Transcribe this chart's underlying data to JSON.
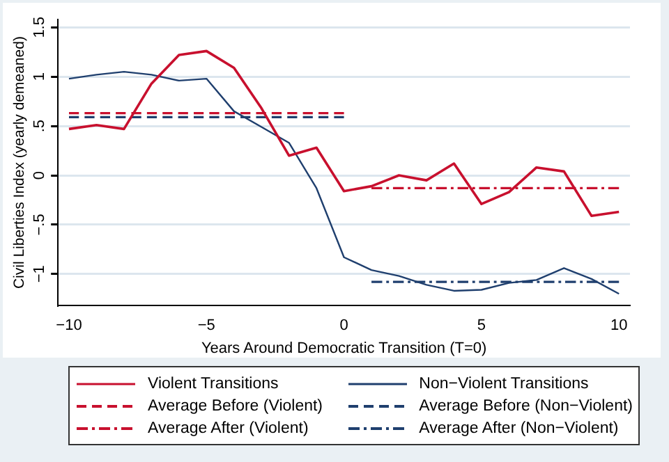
{
  "chart_data": {
    "type": "line",
    "xlabel": "Years Around Democratic Transition (T=0)",
    "ylabel": "Civil Liberties Index (yearly demeaned)",
    "x": [
      -10,
      -9,
      -8,
      -7,
      -6,
      -5,
      -4,
      -3,
      -2,
      -1,
      0,
      1,
      2,
      3,
      4,
      5,
      6,
      7,
      8,
      9,
      10
    ],
    "series": [
      {
        "name": "Violent Transitions",
        "color": "#c8102e",
        "line_style": "solid",
        "values": [
          0.47,
          0.51,
          0.47,
          0.93,
          1.22,
          1.26,
          1.09,
          0.68,
          0.2,
          0.28,
          -0.16,
          -0.11,
          0,
          -0.05,
          0.12,
          -0.29,
          -0.17,
          0.08,
          0.04,
          -0.41,
          -0.37
        ]
      },
      {
        "name": "Non−Violent Transitions",
        "color": "#1f3f6e",
        "line_style": "solid",
        "values": [
          0.98,
          1.02,
          1.05,
          1.02,
          0.96,
          0.98,
          0.65,
          0.49,
          0.33,
          -0.13,
          -0.83,
          -0.96,
          -1.02,
          -1.11,
          -1.17,
          -1.16,
          -1.09,
          -1.06,
          -0.94,
          -1.05,
          -1.2
        ]
      },
      {
        "name": "Average Before (Violent)",
        "color": "#c8102e",
        "line_style": "dashed",
        "x": [
          -10,
          0
        ],
        "values": [
          0.63,
          0.63
        ]
      },
      {
        "name": "Average Before (Non−Violent)",
        "color": "#1f3f6e",
        "line_style": "dashed",
        "x": [
          -10,
          0
        ],
        "values": [
          0.59,
          0.59
        ]
      },
      {
        "name": "Average After (Violent)",
        "color": "#c8102e",
        "line_style": "dashdot",
        "x": [
          1,
          10
        ],
        "values": [
          -0.13,
          -0.13
        ]
      },
      {
        "name": "Average After (Non−Violent)",
        "color": "#1f3f6e",
        "line_style": "dashdot",
        "x": [
          1,
          10
        ],
        "values": [
          -1.08,
          -1.08
        ]
      }
    ],
    "xlim": [
      -10.4,
      10.4
    ],
    "xticks": [
      {
        "value": -10,
        "label": "−10"
      },
      {
        "value": -5,
        "label": "−5"
      },
      0,
      5,
      10
    ],
    "ylim": [
      -1.32,
      1.58
    ],
    "yticks": [
      {
        "value": -1,
        "label": "−1"
      },
      {
        "value": -0.5,
        "label": "−.5"
      },
      0,
      {
        "value": 0.5,
        "label": ".5"
      },
      1,
      1.5
    ],
    "grid": "y",
    "legend": "bottom",
    "marker": "none"
  }
}
